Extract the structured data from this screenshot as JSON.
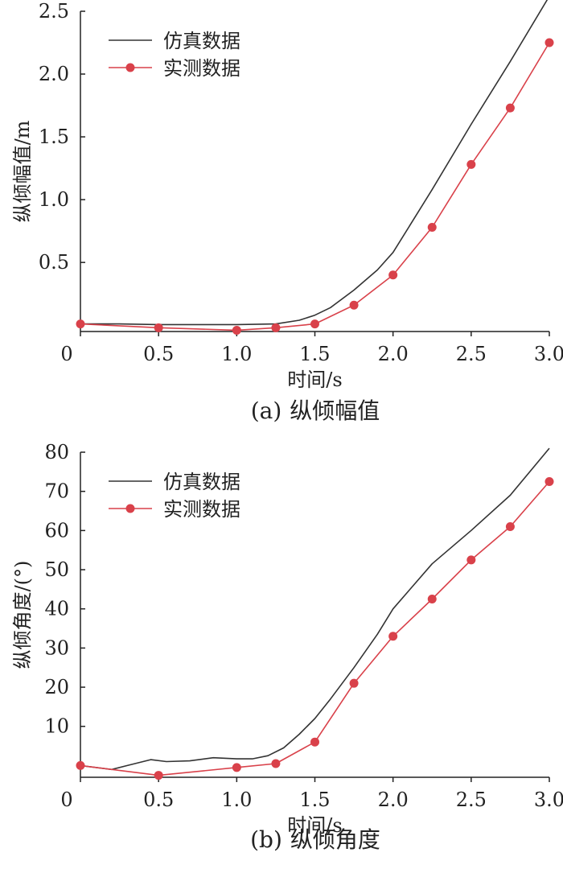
{
  "chart_data": [
    {
      "type": "line",
      "caption_label": "(a)",
      "caption_text": "纵倾幅值",
      "xlabel": "时间/s",
      "ylabel": "纵倾幅值/m",
      "xlim": [
        0,
        3.0
      ],
      "ylim": [
        -0.05,
        2.5
      ],
      "x_ticks": [
        "0",
        "0.5",
        "1.0",
        "1.5",
        "2.0",
        "2.5",
        "3.0"
      ],
      "y_ticks": [
        "0.5",
        "1.0",
        "1.5",
        "2.0",
        "2.5"
      ],
      "grid": false,
      "legend_position": "top-left",
      "series": [
        {
          "name": "仿真数据",
          "color": "#333333",
          "marker": "none",
          "x": [
            0,
            0.25,
            0.5,
            0.75,
            1.0,
            1.25,
            1.4,
            1.5,
            1.6,
            1.75,
            1.9,
            2.0,
            2.25,
            2.5,
            2.75,
            3.0
          ],
          "y": [
            0.01,
            0.01,
            0.005,
            0.005,
            0.005,
            0.01,
            0.04,
            0.08,
            0.14,
            0.28,
            0.44,
            0.58,
            1.08,
            1.6,
            2.1,
            2.62
          ]
        },
        {
          "name": "实测数据",
          "color": "#d9414a",
          "marker": "circle",
          "x": [
            0,
            0.5,
            1.0,
            1.25,
            1.5,
            1.75,
            2.0,
            2.25,
            2.5,
            2.75,
            3.0
          ],
          "y": [
            0.01,
            -0.02,
            -0.04,
            -0.02,
            0.01,
            0.16,
            0.4,
            0.78,
            1.28,
            1.73,
            2.25
          ]
        }
      ]
    },
    {
      "type": "line",
      "caption_label": "(b)",
      "caption_text": "纵倾角度",
      "xlabel": "时间/s",
      "ylabel": "纵倾角度/(°)",
      "xlim": [
        0,
        3.0
      ],
      "ylim": [
        -3,
        80
      ],
      "x_ticks": [
        "0",
        "0.5",
        "1.0",
        "1.5",
        "2.0",
        "2.5",
        "3.0"
      ],
      "y_ticks": [
        "10",
        "20",
        "30",
        "40",
        "50",
        "60",
        "70",
        "80"
      ],
      "grid": false,
      "legend_position": "top-left",
      "series": [
        {
          "name": "仿真数据",
          "color": "#333333",
          "marker": "none",
          "x": [
            0,
            0.2,
            0.3,
            0.45,
            0.55,
            0.7,
            0.85,
            1.0,
            1.1,
            1.2,
            1.3,
            1.4,
            1.5,
            1.6,
            1.75,
            1.9,
            2.0,
            2.25,
            2.5,
            2.75,
            3.0
          ],
          "y": [
            0,
            -1,
            0,
            1.5,
            1.0,
            1.2,
            2.0,
            1.7,
            1.7,
            2.5,
            4.5,
            8.0,
            12.0,
            17.0,
            25.0,
            33.5,
            40.0,
            51.5,
            60.0,
            69.0,
            81.0
          ]
        },
        {
          "name": "实测数据",
          "color": "#d9414a",
          "marker": "circle",
          "x": [
            0,
            0.5,
            1.0,
            1.25,
            1.5,
            1.75,
            2.0,
            2.25,
            2.5,
            2.75,
            3.0
          ],
          "y": [
            0,
            -2.5,
            -0.5,
            0.5,
            6.0,
            21.0,
            33.0,
            42.5,
            52.5,
            61.0,
            72.5
          ]
        }
      ]
    }
  ]
}
